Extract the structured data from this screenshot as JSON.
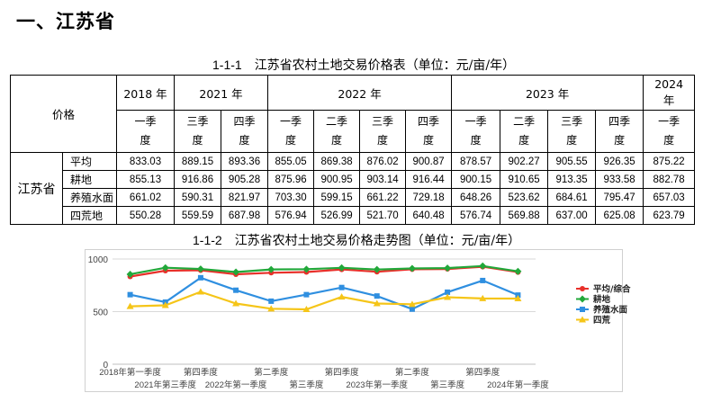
{
  "section_heading": "一、江苏省",
  "table_caption": {
    "number": "1-1-1",
    "text": "江苏省农村土地交易价格表（单位：元/亩/年）"
  },
  "table": {
    "corner_label": "价格",
    "years": [
      {
        "label": "2018 年",
        "span": 1
      },
      {
        "label": "2021 年",
        "span": 2
      },
      {
        "label": "2022 年",
        "span": 4
      },
      {
        "label": "2023 年",
        "span": 4
      },
      {
        "label": "2024 年",
        "span": 1
      }
    ],
    "quarters": [
      "一季度",
      "三季度",
      "四季度",
      "一季度",
      "二季度",
      "三季度",
      "四季度",
      "一季度",
      "二季度",
      "三季度",
      "四季度",
      "一季度"
    ],
    "region": "江苏省",
    "rows": [
      {
        "label": "平均",
        "values": [
          "833.03",
          "889.15",
          "893.36",
          "855.05",
          "869.38",
          "876.02",
          "900.87",
          "878.57",
          "902.27",
          "905.55",
          "926.35",
          "875.22"
        ]
      },
      {
        "label": "耕地",
        "values": [
          "855.13",
          "916.86",
          "905.28",
          "875.96",
          "900.95",
          "903.14",
          "916.44",
          "900.15",
          "910.65",
          "913.35",
          "933.58",
          "882.78"
        ]
      },
      {
        "label": "养殖水面",
        "values": [
          "661.02",
          "590.31",
          "821.97",
          "703.30",
          "599.15",
          "661.22",
          "729.18",
          "648.26",
          "523.62",
          "684.61",
          "795.47",
          "657.03"
        ]
      },
      {
        "label": "四荒地",
        "values": [
          "550.28",
          "559.59",
          "687.98",
          "576.94",
          "526.99",
          "521.70",
          "640.48",
          "576.74",
          "569.88",
          "637.00",
          "625.08",
          "623.79"
        ]
      }
    ]
  },
  "chart_caption": {
    "number": "1-1-2",
    "text": "江苏省农村土地交易价格走势图（单位：元/亩/年）"
  },
  "chart_data": {
    "type": "line",
    "title": "",
    "xlabel": "",
    "ylabel": "",
    "ylim": [
      0,
      1000
    ],
    "y_ticks": [
      "0",
      "500",
      "1000"
    ],
    "x_tick_labels_upper": [
      {
        "index": 0,
        "label": "2018年第一季度"
      },
      {
        "index": 2,
        "label": "第四季度"
      },
      {
        "index": 4,
        "label": "第二季度"
      },
      {
        "index": 6,
        "label": "第四季度"
      },
      {
        "index": 8,
        "label": "第二季度"
      },
      {
        "index": 10,
        "label": "第四季度"
      }
    ],
    "x_tick_labels_lower": [
      {
        "index": 1,
        "label": "2021年第三季度"
      },
      {
        "index": 3,
        "label": "2022年第一季度"
      },
      {
        "index": 5,
        "label": "第三季度"
      },
      {
        "index": 7,
        "label": "2023年第一季度"
      },
      {
        "index": 9,
        "label": "第三季度"
      },
      {
        "index": 11,
        "label": "2024年第一季度"
      }
    ],
    "grid": "horizontal",
    "legend_position": "right",
    "series": [
      {
        "name": "平均/综合",
        "color": "#e8302a",
        "marker": "circle",
        "values": [
          833.03,
          889.15,
          893.36,
          855.05,
          869.38,
          876.02,
          900.87,
          878.57,
          902.27,
          905.55,
          926.35,
          875.22
        ]
      },
      {
        "name": "耕地",
        "color": "#22a83a",
        "marker": "diamond",
        "values": [
          855.13,
          916.86,
          905.28,
          875.96,
          900.95,
          903.14,
          916.44,
          900.15,
          910.65,
          913.35,
          933.58,
          882.78
        ]
      },
      {
        "name": "养殖水面",
        "color": "#2f8fe0",
        "marker": "square",
        "values": [
          661.02,
          590.31,
          821.97,
          703.3,
          599.15,
          661.22,
          729.18,
          648.26,
          523.62,
          684.61,
          795.47,
          657.03
        ]
      },
      {
        "name": "四荒",
        "color": "#f5c518",
        "marker": "triangle",
        "values": [
          550.28,
          559.59,
          687.98,
          576.94,
          526.99,
          521.7,
          640.48,
          576.74,
          569.88,
          637.0,
          625.08,
          623.79
        ]
      }
    ]
  }
}
